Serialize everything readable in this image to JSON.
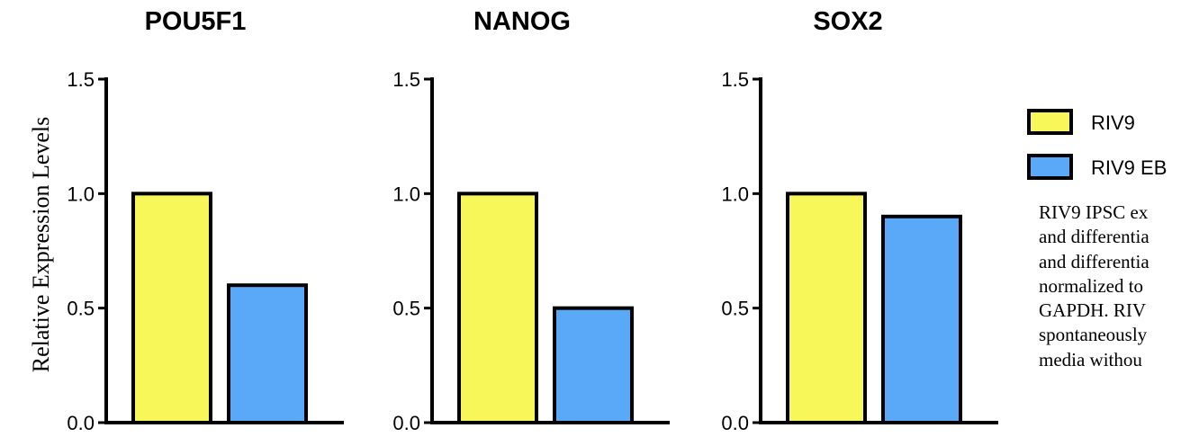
{
  "chart_data": [
    {
      "type": "bar",
      "title": "POU5F1",
      "ylabel": "Relative Expression Levels",
      "xlabel": "",
      "ylim": [
        0,
        1.5
      ],
      "yticks": [
        0.0,
        0.5,
        1.0,
        1.5
      ],
      "ytick_labels": [
        "0.0",
        "0.5",
        "1.0",
        "1.5"
      ],
      "categories": [
        "RIV9",
        "RIV9 EB"
      ],
      "values": [
        1.0,
        0.6
      ]
    },
    {
      "type": "bar",
      "title": "NANOG",
      "xlabel": "",
      "ylim": [
        0,
        1.5
      ],
      "yticks": [
        0.0,
        0.5,
        1.0,
        1.5
      ],
      "ytick_labels": [
        "0.0",
        "0.5",
        "1.0",
        "1.5"
      ],
      "categories": [
        "RIV9",
        "RIV9 EB"
      ],
      "values": [
        1.0,
        0.5
      ]
    },
    {
      "type": "bar",
      "title": "SOX2",
      "xlabel": "",
      "ylim": [
        0,
        1.5
      ],
      "yticks": [
        0.0,
        0.5,
        1.0,
        1.5
      ],
      "ytick_labels": [
        "0.0",
        "0.5",
        "1.0",
        "1.5"
      ],
      "categories": [
        "RIV9",
        "RIV9 EB"
      ],
      "values": [
        1.0,
        0.9
      ]
    }
  ],
  "legend": {
    "placement": "right",
    "items": [
      {
        "label": "RIV9",
        "color": "#f7f75a"
      },
      {
        "label": "RIV9 EB",
        "color": "#5aa9f9"
      }
    ]
  },
  "caption_lines": [
    "RIV9 IPSC ex",
    "and differentia",
    "and differentia",
    "normalized to",
    "GAPDH. RIV",
    "spontaneously",
    "media withou"
  ]
}
